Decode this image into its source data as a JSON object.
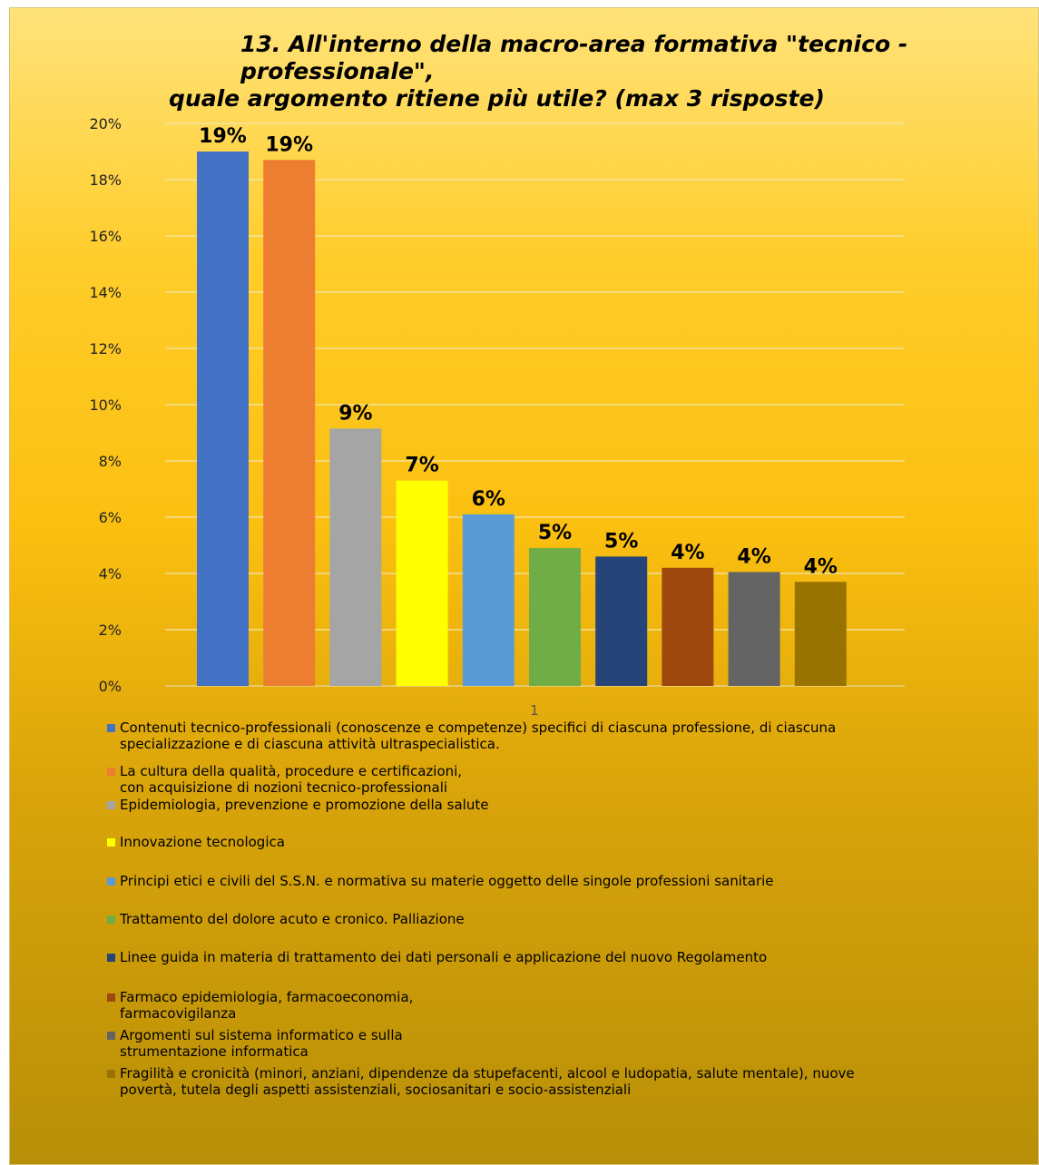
{
  "title_line1": "13. All'interno della macro-area formativa \"tecnico - professionale\",",
  "title_line2": "quale argomento ritiene più utile? (max 3 risposte)",
  "chart_data": {
    "type": "bar",
    "title": "13. All'interno della macro-area formativa \"tecnico - professionale\", quale argomento ritiene più utile? (max 3 risposte)",
    "categories": [
      "1"
    ],
    "x_tick_label": "1",
    "ylim": [
      0,
      20
    ],
    "yticks": [
      "0%",
      "2%",
      "4%",
      "6%",
      "8%",
      "10%",
      "12%",
      "14%",
      "16%",
      "18%",
      "20%"
    ],
    "grid": true,
    "legend_placement": "bottom",
    "series": [
      {
        "name": "Contenuti tecnico-professionali (conoscenze e competenze) specifici di ciascuna professione, di ciascuna\nspecializzazione e di ciascuna attività ultraspecialistica.",
        "value": 19.0,
        "label": "19%",
        "color": "#4472c4"
      },
      {
        "name": "La cultura della qualità, procedure e certificazioni,\n con acquisizione di nozioni tecnico-professionali",
        "value": 18.7,
        "label": "19%",
        "color": "#ed7d31"
      },
      {
        "name": "Epidemiologia, prevenzione e promozione della salute",
        "value": 9.15,
        "label": "9%",
        "color": "#a5a5a5"
      },
      {
        "name": "Innovazione tecnologica",
        "value": 7.3,
        "label": "7%",
        "color": "#ffff00"
      },
      {
        "name": "Principi etici e civili del S.S.N. e normativa su materie oggetto delle singole professioni sanitarie",
        "value": 6.1,
        "label": "6%",
        "color": "#5b9bd5"
      },
      {
        "name": "Trattamento del dolore acuto e cronico. Palliazione",
        "value": 4.9,
        "label": "5%",
        "color": "#70ad47"
      },
      {
        "name": "Linee guida in materia di trattamento dei dati personali e applicazione del nuovo Regolamento",
        "value": 4.6,
        "label": "5%",
        "color": "#264478"
      },
      {
        "name": "Farmaco epidemiologia, farmacoeconomia,\n farmacovigilanza",
        "value": 4.2,
        "label": "4%",
        "color": "#9e480e"
      },
      {
        "name": "Argomenti sul sistema informatico e sulla\n strumentazione informatica",
        "value": 4.05,
        "label": "4%",
        "color": "#636363"
      },
      {
        "name": "Fragilità e cronicità (minori, anziani, dipendenze da stupefacenti, alcool e ludopatia, salute mentale), nuove\npovertà, tutela degli aspetti assistenziali, sociosanitari e socio-assistenziali",
        "value": 3.7,
        "label": "4%",
        "color": "#997300"
      }
    ]
  }
}
